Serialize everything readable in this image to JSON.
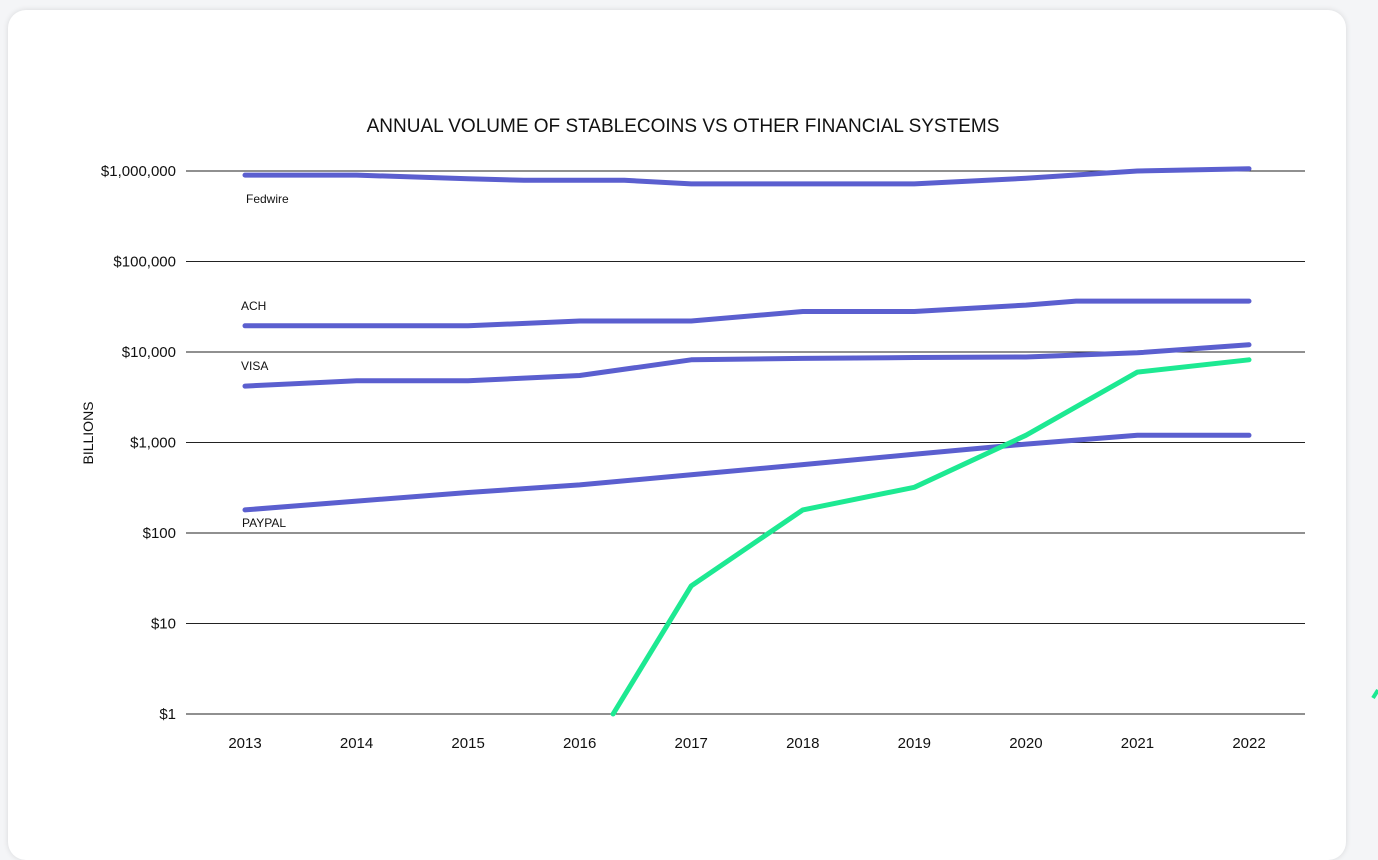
{
  "chart_data": {
    "type": "line",
    "title": "ANNUAL VOLUME OF STABLECOINS VS OTHER FINANCIAL SYSTEMS",
    "ylabel": "BILLIONS",
    "xlabel": "",
    "scale": "log",
    "ylim": [
      1,
      1000000
    ],
    "grid": true,
    "categories": [
      "2013",
      "2014",
      "2015",
      "2016",
      "2017",
      "2018",
      "2019",
      "2020",
      "2021",
      "2022"
    ],
    "y_ticks": [
      1,
      10,
      100,
      1000,
      10000,
      100000,
      1000000
    ],
    "y_tick_labels": [
      "$1",
      "$10",
      "$100",
      "$1,000",
      "$10,000",
      "$100,000",
      "$1,000,000"
    ],
    "colors": {
      "traditional": "#5b5fcf",
      "stablecoins": "#1de992"
    },
    "series": [
      {
        "name": "Fedwire",
        "color": "#5b5fcf",
        "points": [
          [
            2013,
            900000
          ],
          [
            2014,
            900000
          ],
          [
            2015,
            820000
          ],
          [
            2015.5,
            790000
          ],
          [
            2016.4,
            790000
          ],
          [
            2017,
            720000
          ],
          [
            2018,
            720000
          ],
          [
            2019,
            720000
          ],
          [
            2020,
            830000
          ],
          [
            2021,
            1000000
          ],
          [
            2022,
            1060000
          ]
        ]
      },
      {
        "name": "ACH",
        "color": "#5b5fcf",
        "points": [
          [
            2013,
            19500
          ],
          [
            2014,
            19500
          ],
          [
            2015,
            19500
          ],
          [
            2016,
            22000
          ],
          [
            2017,
            22000
          ],
          [
            2018,
            28000
          ],
          [
            2019,
            28000
          ],
          [
            2020,
            33000
          ],
          [
            2020.45,
            36500
          ],
          [
            2021,
            36500
          ],
          [
            2022,
            36500
          ]
        ]
      },
      {
        "name": "VISA",
        "color": "#5b5fcf",
        "points": [
          [
            2013,
            4200
          ],
          [
            2014,
            4800
          ],
          [
            2015,
            4800
          ],
          [
            2016,
            5500
          ],
          [
            2017,
            8200
          ],
          [
            2018,
            8500
          ],
          [
            2019,
            8700
          ],
          [
            2020,
            8800
          ],
          [
            2021,
            9800
          ],
          [
            2022,
            12000
          ]
        ]
      },
      {
        "name": "PAYPAL",
        "color": "#5b5fcf",
        "points": [
          [
            2013,
            180
          ],
          [
            2014,
            225
          ],
          [
            2015,
            280
          ],
          [
            2016,
            340
          ],
          [
            2017,
            440
          ],
          [
            2018,
            570
          ],
          [
            2019,
            740
          ],
          [
            2020,
            960
          ],
          [
            2021,
            1200
          ],
          [
            2022,
            1200
          ]
        ]
      },
      {
        "name": "",
        "color": "#1de992",
        "points": [
          [
            2016.3,
            1
          ],
          [
            2017,
            26
          ],
          [
            2018,
            180
          ],
          [
            2019,
            320
          ],
          [
            2020,
            1200
          ],
          [
            2021,
            6000
          ],
          [
            2022,
            8200
          ]
        ]
      }
    ]
  }
}
